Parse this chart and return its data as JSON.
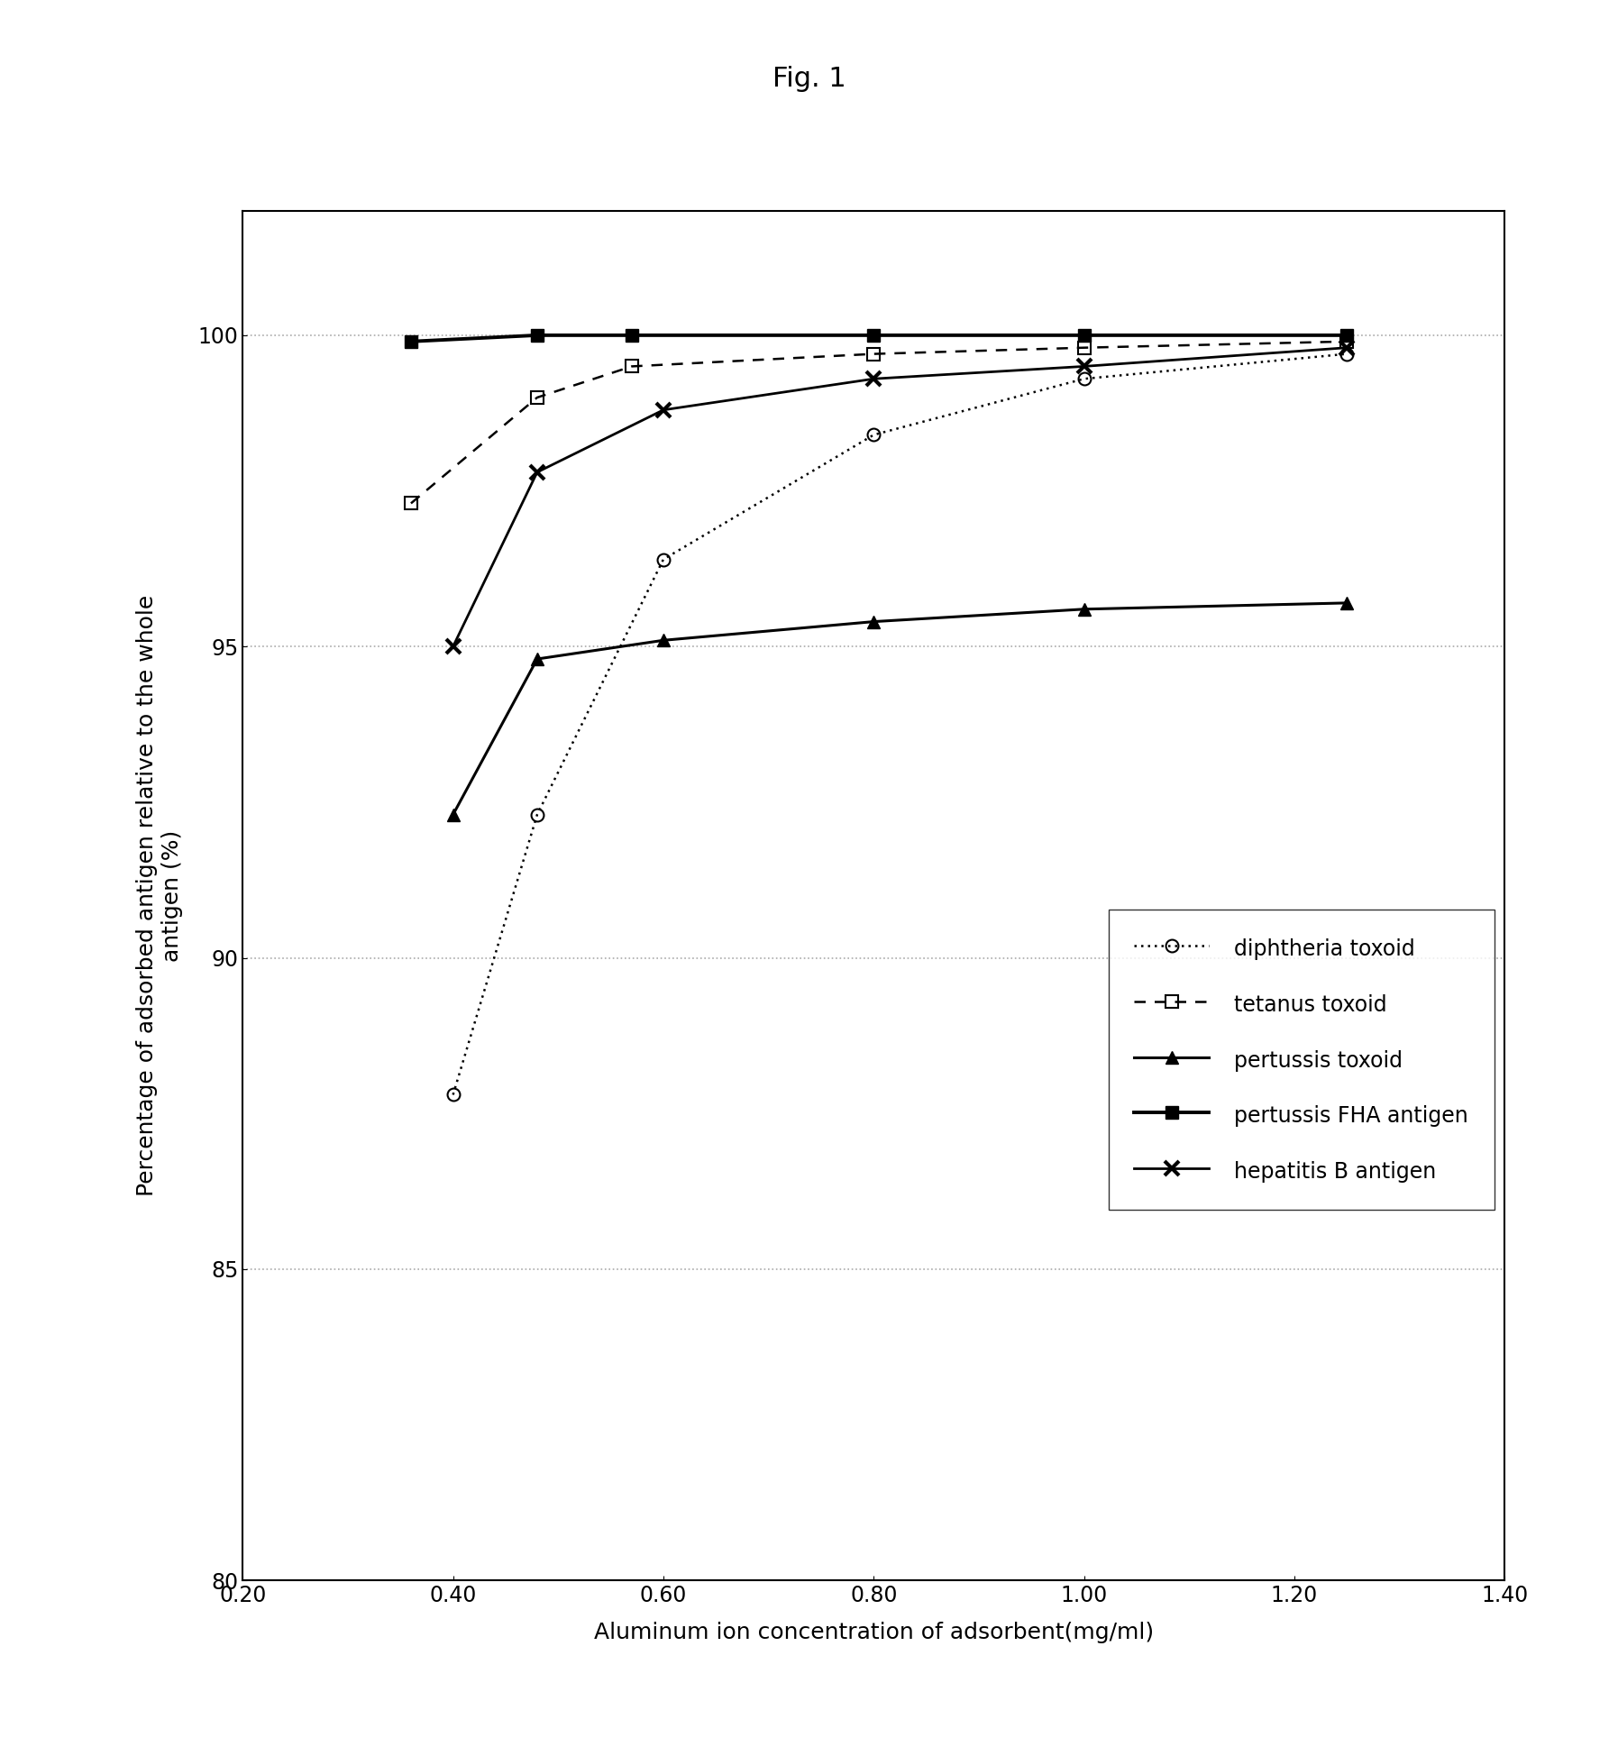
{
  "title": "Fig. 1",
  "xlabel": "Aluminum ion concentration of adsorbent(mg/ml)",
  "ylabel": "Percentage of adsorbed antigen relative to the whole\nantigen (%)",
  "xlim": [
    0.2,
    1.4
  ],
  "ylim": [
    80,
    102
  ],
  "xticks": [
    0.2,
    0.4,
    0.6,
    0.8,
    1.0,
    1.2,
    1.4
  ],
  "yticks": [
    80,
    85,
    90,
    95,
    100
  ],
  "grid_color": "#aaaaaa",
  "background_color": "#ffffff",
  "series": [
    {
      "name": "diphtheria toxoid",
      "x": [
        0.4,
        0.48,
        0.6,
        0.8,
        1.0,
        1.25
      ],
      "y": [
        87.8,
        92.3,
        96.4,
        98.4,
        99.3,
        99.7
      ],
      "color": "black",
      "linestyle": "dotted",
      "marker": "o",
      "markersize": 10,
      "linewidth": 1.8,
      "fillstyle": "none"
    },
    {
      "name": "tetanus toxoid",
      "x": [
        0.36,
        0.48,
        0.57,
        0.8,
        1.0,
        1.25
      ],
      "y": [
        97.3,
        99.0,
        99.5,
        99.7,
        99.8,
        99.9
      ],
      "color": "black",
      "linestyle": "dashed",
      "marker": "s",
      "markersize": 10,
      "linewidth": 1.8,
      "fillstyle": "none"
    },
    {
      "name": "pertussis toxoid",
      "x": [
        0.4,
        0.48,
        0.6,
        0.8,
        1.0,
        1.25
      ],
      "y": [
        92.3,
        94.8,
        95.1,
        95.4,
        95.6,
        95.7
      ],
      "color": "black",
      "linestyle": "solid",
      "marker": "^",
      "markersize": 10,
      "linewidth": 2.2,
      "fillstyle": "full"
    },
    {
      "name": "pertussis FHA antigen",
      "x": [
        0.36,
        0.48,
        0.57,
        0.8,
        1.0,
        1.25
      ],
      "y": [
        99.9,
        100.0,
        100.0,
        100.0,
        100.0,
        100.0
      ],
      "color": "black",
      "linestyle": "solid",
      "marker": "s",
      "markersize": 10,
      "linewidth": 2.8,
      "fillstyle": "full"
    },
    {
      "name": "hepatitis B antigen",
      "x": [
        0.4,
        0.48,
        0.6,
        0.8,
        1.0,
        1.25
      ],
      "y": [
        95.0,
        97.8,
        98.8,
        99.3,
        99.5,
        99.8
      ],
      "color": "black",
      "linestyle": "solid",
      "marker": "x",
      "markersize": 12,
      "linewidth": 2.0,
      "fillstyle": "full"
    }
  ],
  "title_fontsize": 22,
  "label_fontsize": 18,
  "tick_fontsize": 17,
  "legend_fontsize": 17
}
